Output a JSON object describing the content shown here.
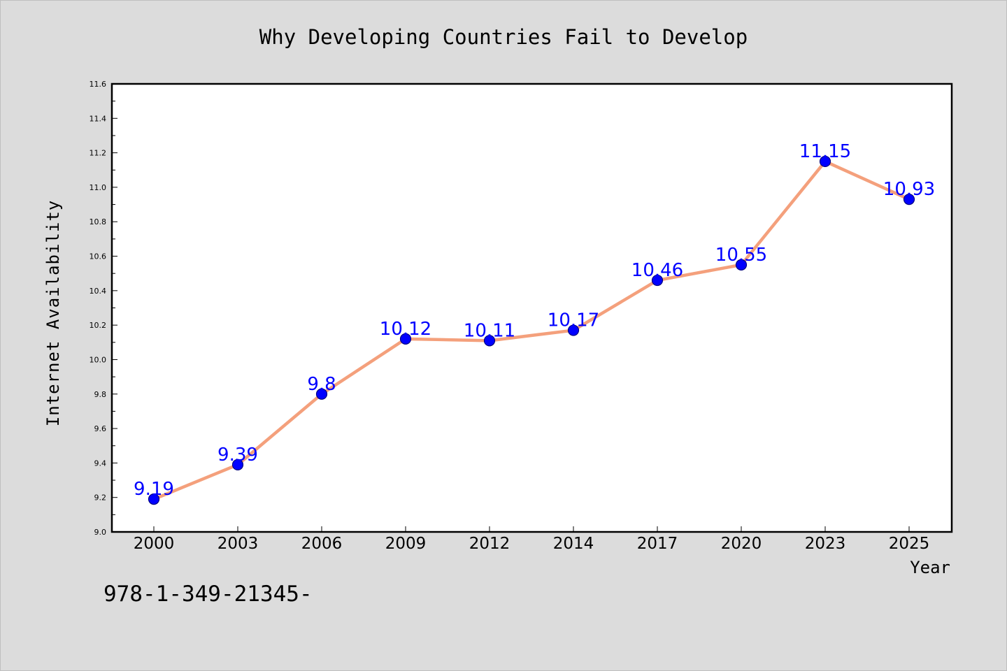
{
  "chart_data": {
    "type": "line",
    "title": "Why Developing Countries Fail to Develop",
    "xlabel": "Year",
    "ylabel": "Internet Availability",
    "categories": [
      "2000",
      "2003",
      "2006",
      "2009",
      "2012",
      "2014",
      "2017",
      "2020",
      "2023",
      "2025"
    ],
    "values": [
      9.19,
      9.39,
      9.8,
      10.12,
      10.11,
      10.17,
      10.46,
      10.55,
      11.15,
      10.93
    ],
    "data_labels": [
      "9.19",
      "9.39",
      "9.8",
      "10.12",
      "10.11",
      "10.17",
      "10.46",
      "10.55",
      "11.15",
      "10.93"
    ],
    "ylim": [
      9.0,
      11.6
    ],
    "yticks": [
      "9.0",
      "9.2",
      "9.4",
      "9.6",
      "9.8",
      "10.0",
      "10.2",
      "10.4",
      "10.6",
      "10.8",
      "11.0",
      "11.2",
      "11.4",
      "11.6"
    ],
    "grid": false,
    "legend": "none",
    "colors": {
      "line": "#f4a07c",
      "marker": "#0000ff",
      "marker_edge": "#000080",
      "data_label": "#0000ff",
      "plot_background": "#ffffff",
      "figure_background": "#dcdcdc"
    }
  },
  "footer": {
    "isbn": "978-1-349-21345-"
  }
}
